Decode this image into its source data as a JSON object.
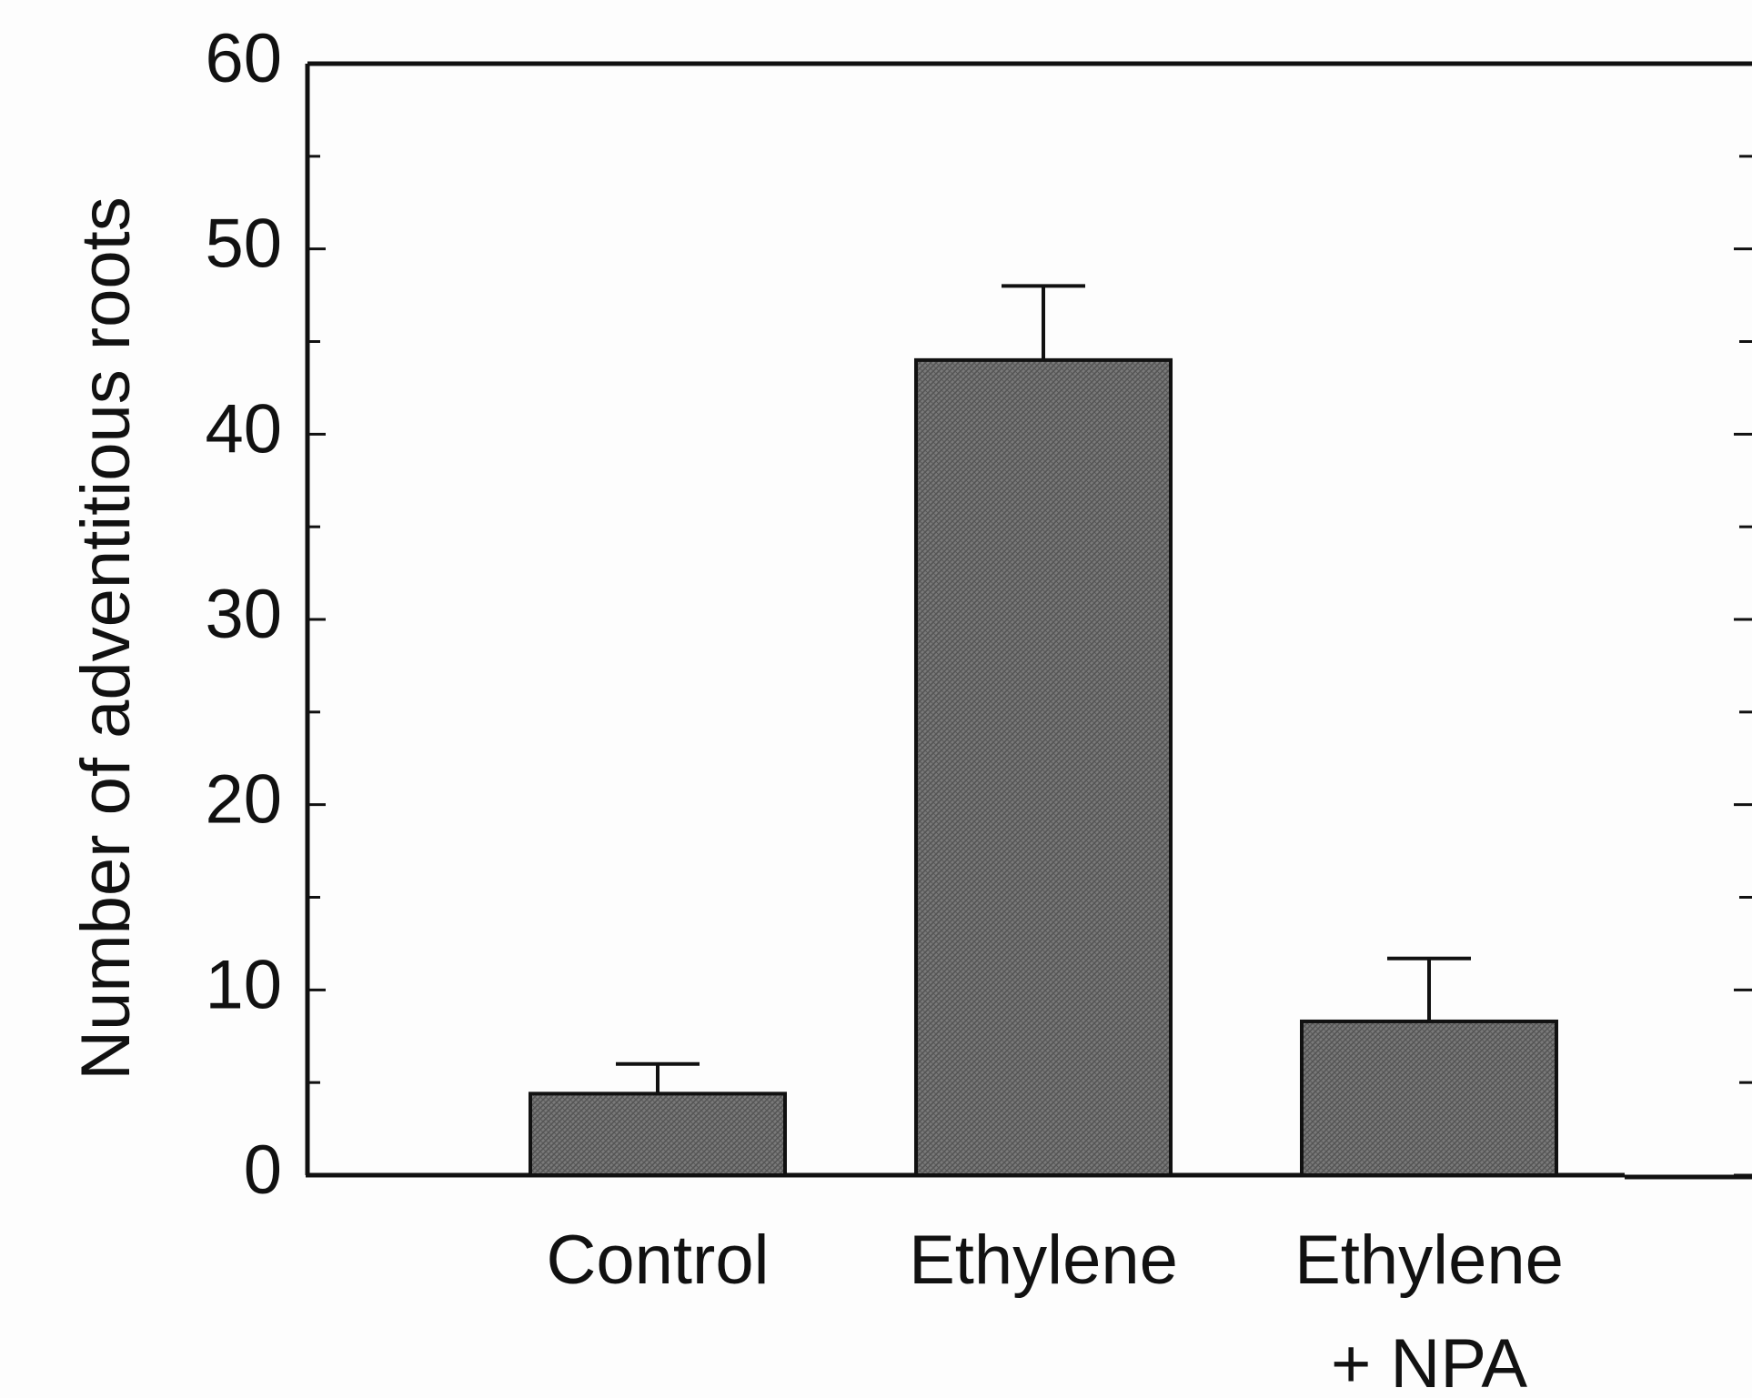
{
  "chart_data": {
    "type": "bar",
    "y_label": "Number of adventitious roots",
    "categories": [
      "Control",
      "Ethylene",
      "Ethylene\n+ NPA"
    ],
    "values": [
      4.4,
      44,
      8.3
    ],
    "errors": [
      1.6,
      4,
      3.4
    ],
    "color": "#7a7a7a",
    "ylim": [
      0,
      60
    ],
    "yticks": [
      0,
      10,
      20,
      30,
      40,
      50,
      60
    ],
    "minor_yticks": [
      5,
      15,
      25,
      35,
      45,
      55
    ]
  }
}
